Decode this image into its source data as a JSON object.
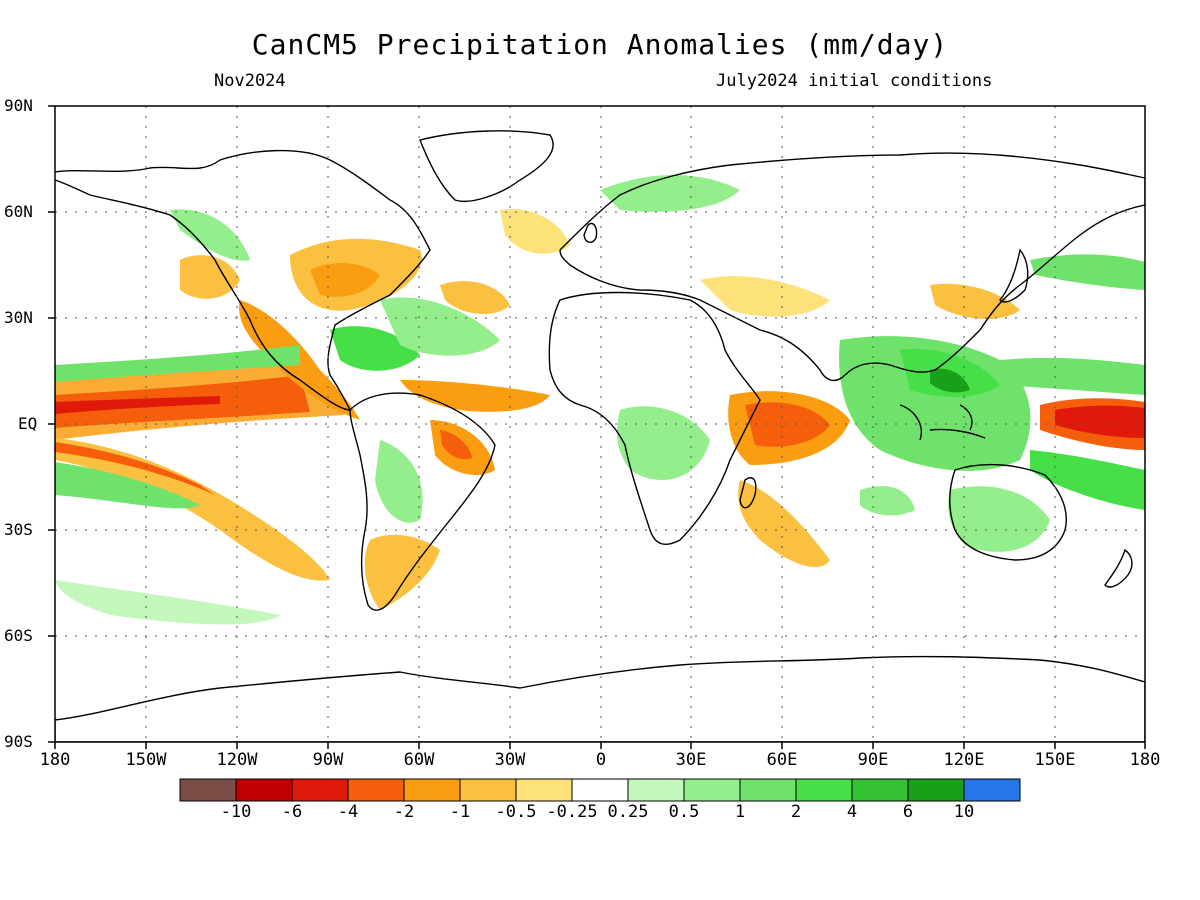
{
  "title": "CanCM5 Precipitation Anomalies (mm/day)",
  "subtitle_left": "Nov2024",
  "subtitle_right": "July2024 initial conditions",
  "y_ticks": [
    "90N",
    "60N",
    "30N",
    "EQ",
    "30S",
    "60S",
    "90S"
  ],
  "x_ticks": [
    "180",
    "150W",
    "120W",
    "90W",
    "60W",
    "30W",
    "0",
    "30E",
    "60E",
    "90E",
    "120E",
    "150E",
    "180"
  ],
  "colorbar": {
    "colors": [
      "#7a4e46",
      "#c00000",
      "#e01a0a",
      "#f55e0a",
      "#fa9d10",
      "#fcc040",
      "#fde27a",
      "#ffffff",
      "#c4f7bc",
      "#94ee8c",
      "#6ee26a",
      "#47df48",
      "#34c234",
      "#18a018",
      "#2676e8"
    ],
    "labels": [
      "-10",
      "-6",
      "-4",
      "-2",
      "-1",
      "-0.5",
      "-0.25",
      "0.25",
      "0.5",
      "1",
      "2",
      "4",
      "6",
      "10"
    ]
  }
}
